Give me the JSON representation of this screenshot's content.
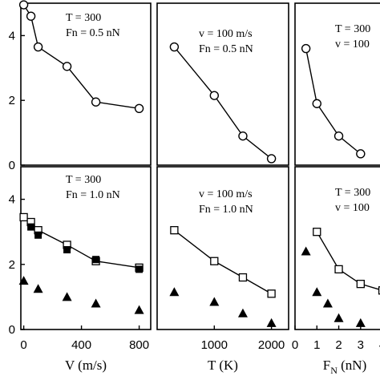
{
  "chart_data": [
    {
      "type": "line",
      "panel": "top-left",
      "annotations": [
        "T = 300",
        "Fn = 0.5 nN"
      ],
      "xlim": [
        -20,
        880
      ],
      "ylim": [
        0,
        5
      ],
      "yticks": [
        0,
        2,
        4
      ],
      "ytick_labels": [
        "0",
        "2",
        "4"
      ],
      "xticks": [],
      "xlabel": "",
      "series": [
        {
          "marker": "open-circle",
          "line": true,
          "x": [
            0,
            50,
            100,
            300,
            500,
            800
          ],
          "y": [
            4.95,
            4.6,
            3.65,
            3.05,
            1.95,
            1.75
          ]
        }
      ]
    },
    {
      "type": "line",
      "panel": "top-middle",
      "annotations": [
        "v = 100 m/s",
        "Fn = 0.5 nN"
      ],
      "xlim": [
        0,
        2300
      ],
      "ylim": [
        0,
        5
      ],
      "yticks": [],
      "xticks": [],
      "xlabel": "",
      "series": [
        {
          "marker": "open-circle",
          "line": true,
          "x": [
            300,
            1000,
            1500,
            2000
          ],
          "y": [
            3.65,
            2.15,
            0.9,
            0.2
          ]
        }
      ]
    },
    {
      "type": "line",
      "panel": "top-right",
      "annotations": [
        "T = 300",
        "v = 100"
      ],
      "xlim": [
        0,
        4.4
      ],
      "ylim": [
        0,
        5
      ],
      "yticks": [],
      "xticks": [],
      "xlabel": "",
      "series": [
        {
          "marker": "open-circle",
          "line": true,
          "x": [
            0.5,
            1,
            2,
            3
          ],
          "y": [
            3.6,
            1.9,
            0.9,
            0.35
          ]
        }
      ]
    },
    {
      "type": "line",
      "panel": "bottom-left",
      "annotations": [
        "T = 300",
        "Fn = 1.0 nN"
      ],
      "xlim": [
        -20,
        880
      ],
      "ylim": [
        0,
        5
      ],
      "yticks": [
        0,
        2,
        4
      ],
      "ytick_labels": [
        "0",
        "2",
        "4"
      ],
      "xticks": [
        0,
        400,
        800
      ],
      "xtick_labels": [
        "0",
        "400",
        "800"
      ],
      "xlabel": "V (m/s)",
      "series": [
        {
          "marker": "open-square",
          "line": true,
          "x": [
            0,
            50,
            100,
            300,
            500,
            800
          ],
          "y": [
            3.45,
            3.3,
            3.05,
            2.6,
            2.1,
            1.9
          ]
        },
        {
          "marker": "filled-square",
          "line": false,
          "x": [
            50,
            100,
            300,
            500,
            800
          ],
          "y": [
            3.15,
            2.9,
            2.45,
            2.15,
            1.85
          ]
        },
        {
          "marker": "filled-triangle",
          "line": false,
          "x": [
            0,
            100,
            300,
            500,
            800
          ],
          "y": [
            1.5,
            1.25,
            1.0,
            0.8,
            0.6
          ]
        }
      ]
    },
    {
      "type": "line",
      "panel": "bottom-middle",
      "annotations": [
        "v = 100 m/s",
        "Fn = 1.0 nN"
      ],
      "xlim": [
        0,
        2300
      ],
      "ylim": [
        0,
        5
      ],
      "yticks": [],
      "xticks": [
        1000,
        2000
      ],
      "xtick_labels": [
        "1000",
        "2000"
      ],
      "xlabel": "T (K)",
      "series": [
        {
          "marker": "open-square",
          "line": true,
          "x": [
            300,
            1000,
            1500,
            2000
          ],
          "y": [
            3.05,
            2.1,
            1.6,
            1.1
          ]
        },
        {
          "marker": "filled-triangle",
          "line": false,
          "x": [
            300,
            1000,
            1500,
            2000
          ],
          "y": [
            1.15,
            0.85,
            0.5,
            0.2
          ]
        }
      ]
    },
    {
      "type": "line",
      "panel": "bottom-right",
      "annotations": [
        "T = 300",
        "v = 100"
      ],
      "xlim": [
        0,
        4.4
      ],
      "ylim": [
        0,
        5
      ],
      "yticks": [],
      "xticks": [
        0,
        1,
        2,
        3,
        4
      ],
      "xtick_labels": [
        "0",
        "1",
        "2",
        "3",
        "4"
      ],
      "xlabel": "F",
      "xlabel_sub": "N",
      "xlabel_tail": " (nN)",
      "series": [
        {
          "marker": "open-square",
          "line": true,
          "x": [
            1,
            2,
            3,
            4
          ],
          "y": [
            3.0,
            1.85,
            1.4,
            1.2
          ]
        },
        {
          "marker": "filled-triangle",
          "line": false,
          "x": [
            0.5,
            1,
            1.5,
            2,
            3
          ],
          "y": [
            2.4,
            1.15,
            0.8,
            0.35,
            0.2
          ]
        }
      ]
    }
  ]
}
